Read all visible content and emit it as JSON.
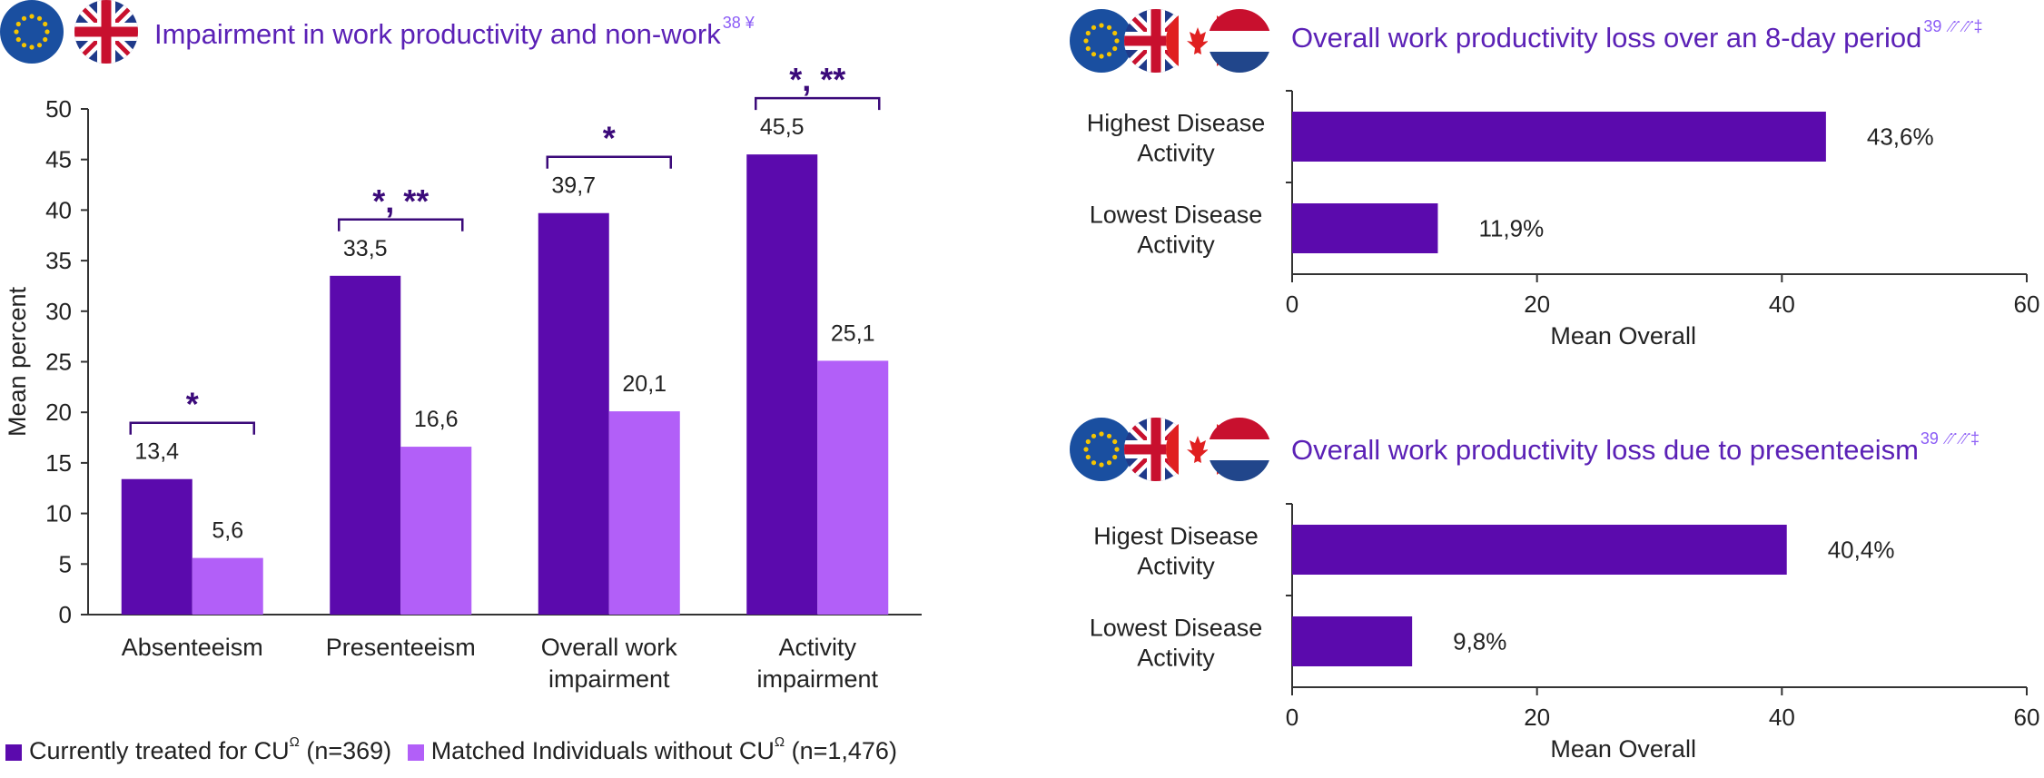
{
  "colors": {
    "purple_dark": "#5b0aad",
    "purple_light": "#b25ff8",
    "title_purple": "#5b21b6"
  },
  "left_title": {
    "text": "Impairment in work productivity and non-work",
    "sup": "38 ¥"
  },
  "right_top_title": {
    "text": "Overall work productivity loss over an 8-day period",
    "sup": "39 ⳼⳼‡"
  },
  "right_bottom_title": {
    "text": "Overall work productivity loss due to presenteeism",
    "sup": "39 ⳼⳼‡"
  },
  "flags_left": [
    "eu-flag-icon",
    "uk-flag-icon"
  ],
  "flags_right": [
    "eu-flag-icon",
    "uk-flag-icon",
    "canada-flag-icon",
    "netherlands-flag-icon"
  ],
  "legend": {
    "series1": "Currently treated for CU",
    "series1_sup": "Ω",
    "series1_n": "(n=369)",
    "series2": "Matched Individuals without CU",
    "series2_sup": "Ω",
    "series2_n": "(n=1,476)"
  },
  "chart_data": [
    {
      "type": "bar",
      "title": "Impairment in work productivity and non-work",
      "ylabel": "Mean percent",
      "ylim": [
        0,
        50
      ],
      "yticks": [
        0,
        5,
        10,
        15,
        20,
        25,
        30,
        35,
        40,
        45,
        50
      ],
      "categories": [
        [
          "Absenteeism"
        ],
        [
          "Presenteeism"
        ],
        [
          "Overall work",
          "impairment"
        ],
        [
          "Activity",
          "impairment"
        ]
      ],
      "series": [
        {
          "name": "Currently treated for CU",
          "values": [
            13.4,
            33.5,
            39.7,
            45.5
          ],
          "labels": [
            "13,4",
            "33,5",
            "39,7",
            "45,5"
          ]
        },
        {
          "name": "Matched Individuals without CU",
          "values": [
            5.6,
            16.6,
            20.1,
            25.1
          ],
          "labels": [
            "5,6",
            "16,6",
            "20,1",
            "25,1"
          ]
        }
      ],
      "significance": [
        "*",
        "*, **",
        "*",
        "*, **"
      ]
    },
    {
      "type": "bar",
      "orientation": "horizontal",
      "title": "Overall work productivity loss over an 8-day period",
      "xlabel": "Mean Overall",
      "xlim": [
        0,
        60
      ],
      "xticks": [
        0,
        20,
        40,
        60
      ],
      "categories": [
        [
          "Highest Disease",
          "Activity"
        ],
        [
          "Lowest Disease",
          "Activity"
        ]
      ],
      "values": [
        43.6,
        11.9
      ],
      "labels": [
        "43,6%",
        "11,9%"
      ]
    },
    {
      "type": "bar",
      "orientation": "horizontal",
      "title": "Overall work productivity loss due to presenteeism",
      "xlabel": "Mean Overall",
      "xlim": [
        0,
        60
      ],
      "xticks": [
        0,
        20,
        40,
        60
      ],
      "categories": [
        [
          "Higest Disease",
          "Activity"
        ],
        [
          "Lowest Disease",
          "Activity"
        ]
      ],
      "values": [
        40.4,
        9.8
      ],
      "labels": [
        "40,4%",
        "9,8%"
      ]
    }
  ]
}
